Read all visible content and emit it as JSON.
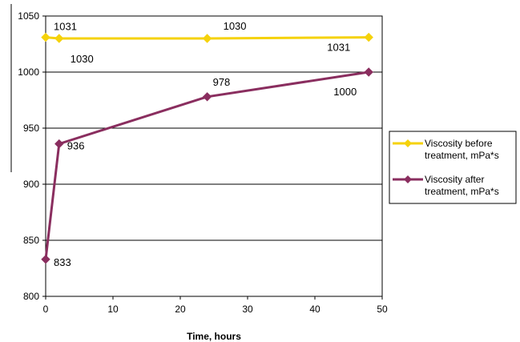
{
  "chart_data": {
    "type": "line",
    "title": "",
    "xlabel": "Time, hours",
    "ylabel": "",
    "xlim": [
      0,
      50
    ],
    "ylim": [
      800,
      1050
    ],
    "xticks": [
      0,
      10,
      20,
      30,
      40,
      50
    ],
    "yticks": [
      800,
      850,
      900,
      950,
      1000,
      1050
    ],
    "grid": "horizontal",
    "legend_position": "right",
    "series": [
      {
        "name": "Viscosity before treatment, mPa*s",
        "legend_lines": [
          "Viscosity before",
          "treatment, mPa*s"
        ],
        "color": "#f5d20b",
        "marker": "diamond",
        "points": [
          {
            "x": 0,
            "y": 1031,
            "label": "1031"
          },
          {
            "x": 2,
            "y": 1030,
            "label": "1030"
          },
          {
            "x": 24,
            "y": 1030,
            "label": "1030"
          },
          {
            "x": 48,
            "y": 1031,
            "label": "1031"
          }
        ]
      },
      {
        "name": "Viscosity after treatment, mPa*s",
        "legend_lines": [
          "Viscosity after",
          "treatment, mPa*s"
        ],
        "color": "#8a2e5f",
        "marker": "diamond",
        "points": [
          {
            "x": 0,
            "y": 833,
            "label": "833"
          },
          {
            "x": 2,
            "y": 936,
            "label": "936"
          },
          {
            "x": 24,
            "y": 978,
            "label": "978"
          },
          {
            "x": 48,
            "y": 1000,
            "label": "1000"
          }
        ]
      }
    ]
  }
}
